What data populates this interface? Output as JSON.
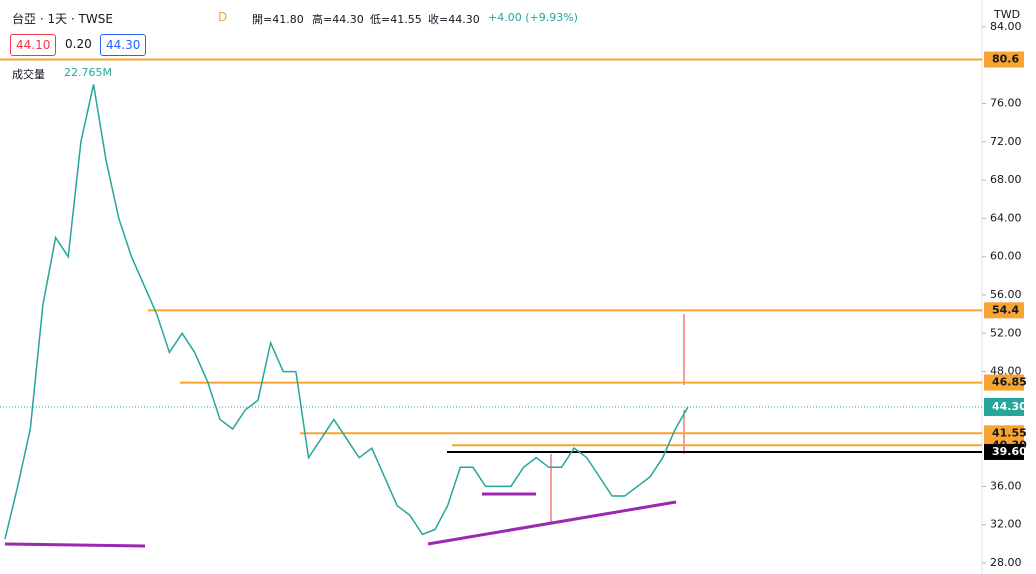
{
  "header": {
    "symbol": "台亞 · 1天 · TWSE",
    "badge": "D",
    "open": "開=41.80",
    "high": "高=44.30",
    "low": "低=41.55",
    "close": "收=44.30",
    "change": "+4.00 (+9.93%)",
    "boxes": [
      "44.10",
      "0.20",
      "44.30"
    ],
    "volume_label": "成交量",
    "volume": "22.765M",
    "currency": "TWD"
  },
  "chart_data": {
    "type": "line",
    "color": "#26a69a",
    "values": [
      30.5,
      36,
      42,
      55,
      62,
      60,
      72,
      78,
      70,
      64,
      60,
      57,
      54,
      50,
      52,
      50,
      47,
      43,
      42,
      44,
      45,
      51,
      48,
      48,
      39,
      41,
      43,
      41,
      39,
      40,
      37,
      34,
      33,
      31,
      31.5,
      34,
      38,
      38,
      36,
      36,
      36,
      38,
      39,
      38,
      38,
      40,
      39,
      37,
      35,
      35,
      36,
      37,
      39,
      42,
      44.3
    ],
    "ylim": [
      28,
      84
    ],
    "yticks": [
      {
        "value": 28,
        "label": "28.00"
      },
      {
        "value": 32,
        "label": "32.00"
      },
      {
        "value": 36,
        "label": "36.00"
      },
      {
        "value": 48,
        "label": "48.00"
      },
      {
        "value": 52,
        "label": "52.00"
      },
      {
        "value": 56,
        "label": "56.00"
      },
      {
        "value": 60,
        "label": "60.00"
      },
      {
        "value": 64,
        "label": "64.00"
      },
      {
        "value": 68,
        "label": "68.00"
      },
      {
        "value": 72,
        "label": "72.00"
      },
      {
        "value": 76,
        "label": "76.00"
      },
      {
        "value": 84,
        "label": "84.00"
      }
    ],
    "levels": [
      {
        "value": 80.6,
        "label": "80.6",
        "color": "#f7a530"
      },
      {
        "value": 54.4,
        "label": "54.4",
        "color": "#f7a530"
      },
      {
        "value": 46.85,
        "label": "46.85",
        "color": "#f7a530"
      },
      {
        "value": 41.55,
        "label": "41.55",
        "color": "#f7a530"
      },
      {
        "value": 40.3,
        "label": "40.30",
        "color": "#f7a530"
      },
      {
        "value": 39.6,
        "label": "39.60",
        "color": "#000000"
      }
    ],
    "last": {
      "value": 44.3,
      "label": "44.30",
      "color": "#26a69a"
    }
  }
}
